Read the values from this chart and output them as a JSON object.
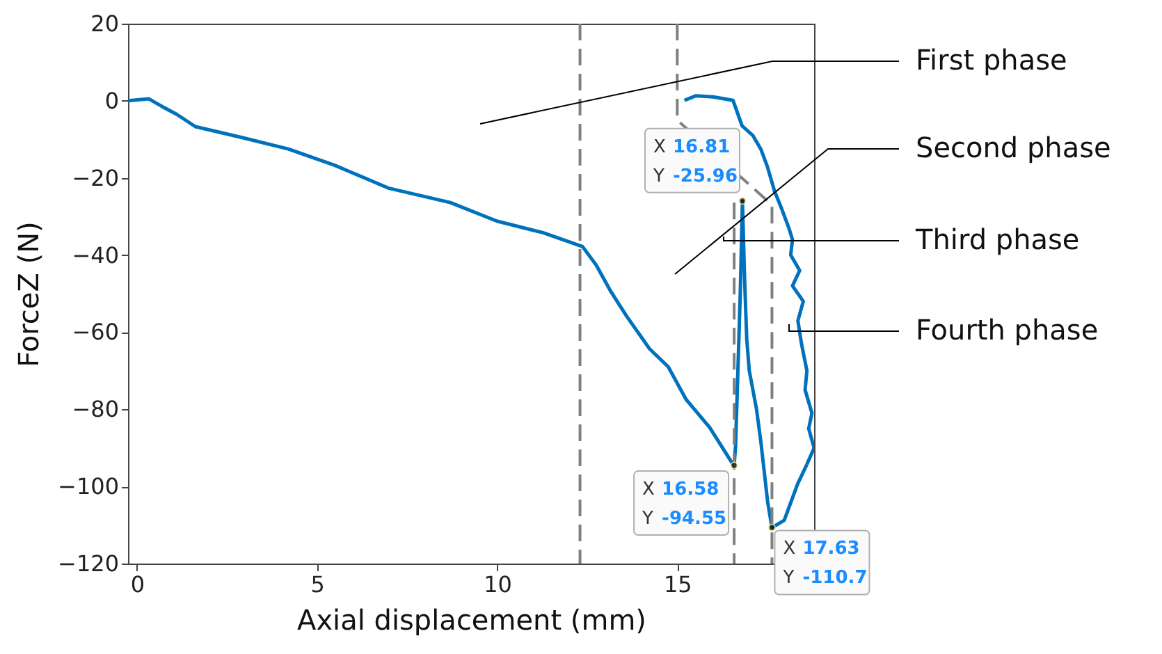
{
  "chart_data": {
    "type": "line",
    "xlabel": "Axial displacement (mm)",
    "ylabel": "ForceZ (N)",
    "xlim": [
      -0.25,
      18.8
    ],
    "ylim": [
      -120,
      20
    ],
    "xticks": [
      0,
      5,
      10,
      15
    ],
    "yticks": [
      -120,
      -100,
      -80,
      -60,
      -40,
      -20,
      0,
      20
    ],
    "grid": false,
    "series": [
      {
        "color": "#0072bd",
        "x": [
          -0.25,
          0.33,
          0.7,
          1.1,
          1.62,
          2.9,
          4.2,
          5.48,
          7.0,
          8.7,
          9.99,
          11.27,
          12.37,
          12.75,
          13.14,
          13.59,
          14.23,
          14.75,
          15.25,
          15.9,
          16.55,
          16.58
        ],
        "values": [
          0,
          0.5,
          -1.5,
          -3.5,
          -6.7,
          -9.5,
          -12.5,
          -16.7,
          -22.7,
          -26.4,
          -31.2,
          -34.2,
          -37.8,
          -42.6,
          -49.2,
          -55.8,
          -64.3,
          -69,
          -77.5,
          -84.7,
          -94.3,
          -94.55
        ]
      },
      {
        "color": "#0072bd",
        "x": [
          16.58,
          16.62,
          16.75,
          16.81,
          16.87,
          16.93,
          17.0,
          17.2,
          17.32,
          17.51,
          17.63,
          17.97,
          18.35,
          18.6
        ],
        "values": [
          -94.55,
          -89.5,
          -50,
          -25.96,
          -46.2,
          -61.8,
          -70,
          -79.9,
          -88.3,
          -104,
          -110.7,
          -108.8,
          -99.2,
          -94.3
        ]
      },
      {
        "color": "#0072bd",
        "x": [
          18.6,
          18.8,
          18.65,
          18.74,
          18.55,
          18.6,
          18.45,
          18.35,
          18.5,
          18.2,
          18.4,
          18.15,
          18.2,
          18.1,
          17.9,
          17.7,
          17.5,
          17.32,
          17.1,
          16.8,
          16.55,
          16.0,
          15.52,
          15.2
        ],
        "values": [
          -94.3,
          -90,
          -85,
          -81,
          -75,
          -70,
          -63,
          -57,
          -52,
          -48,
          -44,
          -40,
          -36,
          -33,
          -28,
          -23.4,
          -17,
          -12.5,
          -9,
          -6.5,
          0.1,
          1,
          1.3,
          0.1
        ]
      },
      {
        "color": "#808080",
        "line_style": "dashed",
        "x": [
          15,
          15,
          17.63,
          17.63
        ],
        "values": [
          20,
          -5,
          -27,
          -120
        ]
      },
      {
        "color": "#808080",
        "line_style": "dashed",
        "x": [
          16.58,
          16.58
        ],
        "values": [
          -26.4,
          -120
        ]
      }
    ],
    "ref_lines": [
      {
        "axis": "x",
        "value": 12.3,
        "color": "#808080",
        "line_style": "dashed"
      }
    ],
    "annotations": [
      "First phase",
      "Second phase",
      "Third phase",
      "Fourth phase",
      {
        "text": "X 16.81\nY -25.96",
        "x": 16.81,
        "y": -25.96
      },
      {
        "text": "X 16.58\nY -94.55",
        "x": 16.58,
        "y": -94.55
      },
      {
        "text": "X 17.63\nY -110.7",
        "x": 17.63,
        "y": -110.7
      }
    ]
  }
}
